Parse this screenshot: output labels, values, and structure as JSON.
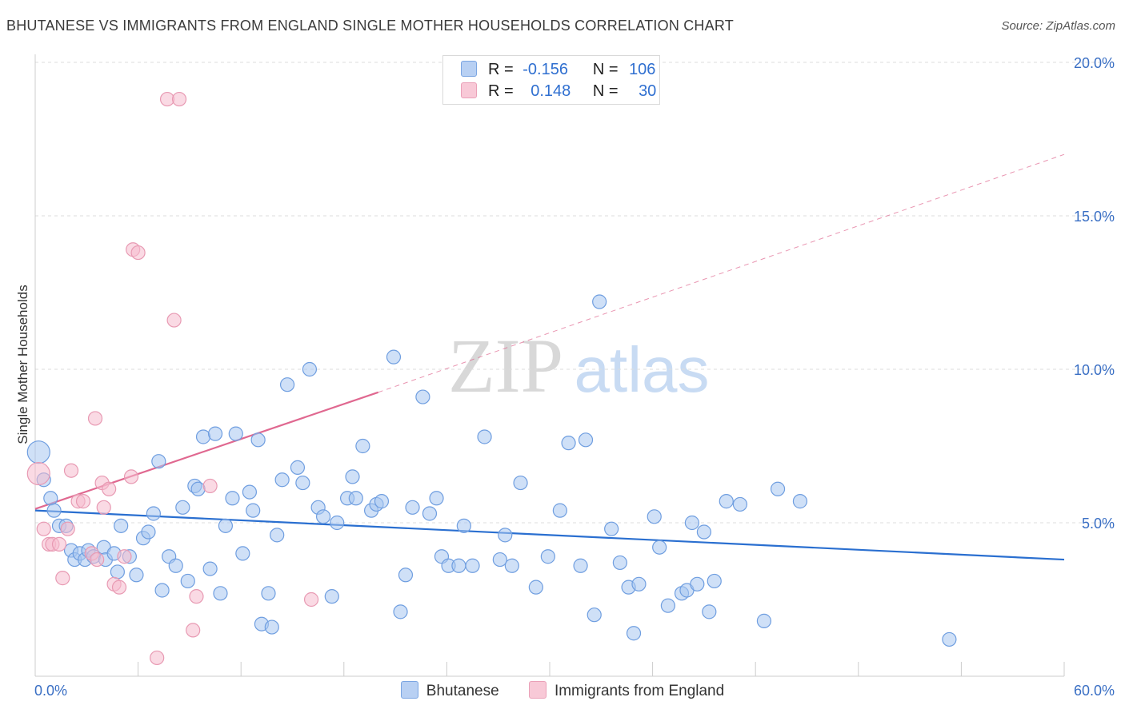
{
  "title": "BHUTANESE VS IMMIGRANTS FROM ENGLAND SINGLE MOTHER HOUSEHOLDS CORRELATION CHART",
  "source": "Source: ZipAtlas.com",
  "watermark": {
    "zip": "ZIP",
    "atlas": "atlas"
  },
  "legend": {
    "rows": [
      {
        "r_label": "R =",
        "r_value": "-0.156",
        "n_label": "N =",
        "n_value": "106"
      },
      {
        "r_label": "R =",
        "r_value": "0.148",
        "n_label": "N =",
        "n_value": "30"
      }
    ]
  },
  "colors": {
    "blue_fill": "#a8c6f0",
    "blue_stroke": "#6f9ee0",
    "blue_line": "#2a6fd0",
    "pink_fill": "#f6bccd",
    "pink_stroke": "#e89ab3",
    "pink_line": "#e06890",
    "tick_label": "#3a6fc4",
    "grid": "#dddddd"
  },
  "chart_data": {
    "type": "scatter",
    "title": "BHUTANESE VS IMMIGRANTS FROM ENGLAND SINGLE MOTHER HOUSEHOLDS CORRELATION CHART",
    "xlabel": "",
    "ylabel": "Single Mother Households",
    "xlim": [
      0,
      60
    ],
    "ylim": [
      0,
      20
    ],
    "x_tick_labels": [
      {
        "value": 0,
        "label": "0.0%"
      },
      {
        "value": 60,
        "label": "60.0%"
      }
    ],
    "y_tick_labels": [
      {
        "value": 5,
        "label": "5.0%"
      },
      {
        "value": 10,
        "label": "10.0%"
      },
      {
        "value": 15,
        "label": "15.0%"
      },
      {
        "value": 20,
        "label": "20.0%"
      }
    ],
    "grid": true,
    "legend_position": "top-center",
    "series": [
      {
        "name": "Bhutanese",
        "color": "#a8c6f0",
        "trend": {
          "x": [
            0,
            60
          ],
          "y": [
            5.4,
            3.8
          ],
          "style": "solid"
        },
        "points": [
          [
            0.2,
            7.3
          ],
          [
            0.5,
            6.4
          ],
          [
            0.9,
            5.8
          ],
          [
            1.1,
            5.4
          ],
          [
            1.4,
            4.9
          ],
          [
            1.8,
            4.9
          ],
          [
            2.1,
            4.1
          ],
          [
            2.3,
            3.8
          ],
          [
            2.6,
            4.0
          ],
          [
            2.9,
            3.8
          ],
          [
            3.1,
            4.1
          ],
          [
            3.4,
            3.9
          ],
          [
            4.0,
            4.2
          ],
          [
            4.1,
            3.8
          ],
          [
            4.6,
            4.0
          ],
          [
            4.8,
            3.4
          ],
          [
            5.0,
            4.9
          ],
          [
            5.5,
            3.9
          ],
          [
            5.9,
            3.3
          ],
          [
            6.3,
            4.5
          ],
          [
            6.6,
            4.7
          ],
          [
            6.9,
            5.3
          ],
          [
            7.2,
            7.0
          ],
          [
            7.4,
            2.8
          ],
          [
            7.8,
            3.9
          ],
          [
            8.2,
            3.6
          ],
          [
            8.6,
            5.5
          ],
          [
            8.9,
            3.1
          ],
          [
            9.3,
            6.2
          ],
          [
            9.5,
            6.1
          ],
          [
            9.8,
            7.8
          ],
          [
            10.2,
            3.5
          ],
          [
            10.5,
            7.9
          ],
          [
            10.8,
            2.7
          ],
          [
            11.1,
            4.9
          ],
          [
            11.5,
            5.8
          ],
          [
            11.7,
            7.9
          ],
          [
            12.1,
            4.0
          ],
          [
            12.5,
            6.0
          ],
          [
            12.7,
            5.4
          ],
          [
            13.0,
            7.7
          ],
          [
            13.2,
            1.7
          ],
          [
            13.6,
            2.7
          ],
          [
            13.8,
            1.6
          ],
          [
            14.1,
            4.6
          ],
          [
            14.4,
            6.4
          ],
          [
            14.7,
            9.5
          ],
          [
            15.3,
            6.8
          ],
          [
            15.6,
            6.3
          ],
          [
            16.0,
            10.0
          ],
          [
            16.5,
            5.5
          ],
          [
            16.8,
            5.2
          ],
          [
            17.3,
            2.6
          ],
          [
            17.6,
            5.0
          ],
          [
            18.2,
            5.8
          ],
          [
            18.5,
            6.5
          ],
          [
            18.7,
            5.8
          ],
          [
            19.1,
            7.5
          ],
          [
            19.6,
            5.4
          ],
          [
            19.9,
            5.6
          ],
          [
            20.2,
            5.7
          ],
          [
            20.9,
            10.4
          ],
          [
            21.3,
            2.1
          ],
          [
            21.6,
            3.3
          ],
          [
            22.0,
            5.5
          ],
          [
            22.6,
            9.1
          ],
          [
            23.0,
            5.3
          ],
          [
            23.4,
            5.8
          ],
          [
            23.7,
            3.9
          ],
          [
            24.1,
            3.6
          ],
          [
            24.7,
            3.6
          ],
          [
            25.0,
            4.9
          ],
          [
            25.5,
            3.6
          ],
          [
            26.2,
            7.8
          ],
          [
            27.1,
            3.8
          ],
          [
            27.4,
            4.6
          ],
          [
            27.8,
            3.6
          ],
          [
            28.3,
            6.3
          ],
          [
            29.2,
            2.9
          ],
          [
            29.9,
            3.9
          ],
          [
            30.6,
            5.4
          ],
          [
            31.1,
            7.6
          ],
          [
            31.8,
            3.6
          ],
          [
            32.1,
            7.7
          ],
          [
            32.6,
            2.0
          ],
          [
            32.9,
            12.2
          ],
          [
            33.6,
            4.8
          ],
          [
            34.1,
            3.7
          ],
          [
            34.6,
            2.9
          ],
          [
            34.9,
            1.4
          ],
          [
            35.2,
            3.0
          ],
          [
            36.1,
            5.2
          ],
          [
            36.4,
            4.2
          ],
          [
            36.9,
            2.3
          ],
          [
            37.7,
            2.7
          ],
          [
            38.0,
            2.8
          ],
          [
            38.3,
            5.0
          ],
          [
            38.6,
            3.0
          ],
          [
            39.0,
            4.7
          ],
          [
            39.3,
            2.1
          ],
          [
            39.6,
            3.1
          ],
          [
            40.3,
            5.7
          ],
          [
            41.1,
            5.6
          ],
          [
            42.5,
            1.8
          ],
          [
            43.3,
            6.1
          ],
          [
            44.6,
            5.7
          ],
          [
            53.3,
            1.2
          ]
        ]
      },
      {
        "name": "Immigrants from England",
        "color": "#f6bccd",
        "trend": {
          "x": [
            0,
            20
          ],
          "y": [
            5.45,
            9.25
          ],
          "style": "solid",
          "dashed_extension": {
            "x": [
              20,
              60
            ],
            "y": [
              9.25,
              17.0
            ]
          }
        },
        "points": [
          [
            0.2,
            6.6
          ],
          [
            0.5,
            4.8
          ],
          [
            0.8,
            4.3
          ],
          [
            1.0,
            4.3
          ],
          [
            1.4,
            4.3
          ],
          [
            1.6,
            3.2
          ],
          [
            1.9,
            4.8
          ],
          [
            2.1,
            6.7
          ],
          [
            2.5,
            5.7
          ],
          [
            2.8,
            5.7
          ],
          [
            3.3,
            4.0
          ],
          [
            3.5,
            8.4
          ],
          [
            3.6,
            3.8
          ],
          [
            3.9,
            6.3
          ],
          [
            4.0,
            5.5
          ],
          [
            4.3,
            6.1
          ],
          [
            4.6,
            3.0
          ],
          [
            4.9,
            2.9
          ],
          [
            5.2,
            3.9
          ],
          [
            5.6,
            6.5
          ],
          [
            5.7,
            13.9
          ],
          [
            6.0,
            13.8
          ],
          [
            7.1,
            0.6
          ],
          [
            7.7,
            18.8
          ],
          [
            8.1,
            11.6
          ],
          [
            8.4,
            18.8
          ],
          [
            9.2,
            1.5
          ],
          [
            9.4,
            2.6
          ],
          [
            10.2,
            6.2
          ],
          [
            16.1,
            2.5
          ]
        ]
      }
    ]
  },
  "bottom_legend": [
    {
      "label": "Bhutanese"
    },
    {
      "label": "Immigrants from England"
    }
  ]
}
